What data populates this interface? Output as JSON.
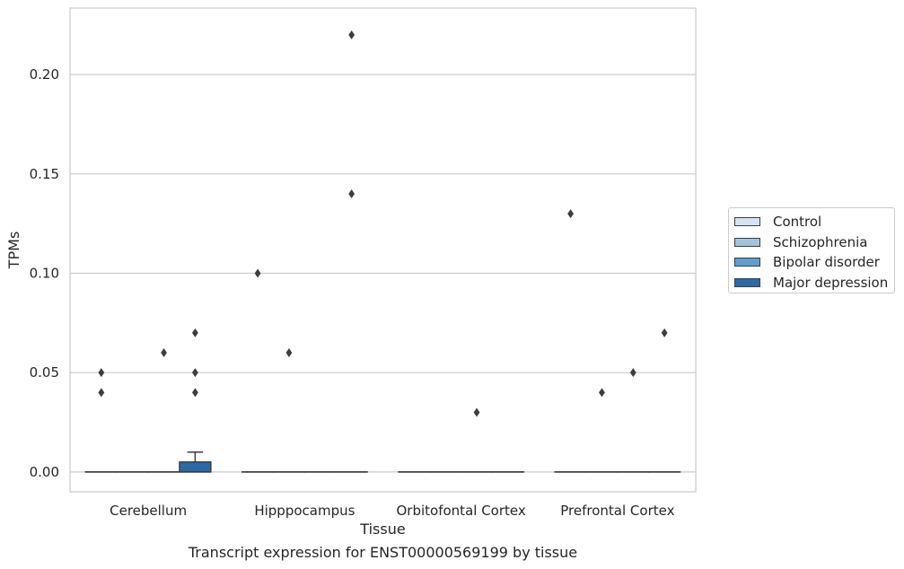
{
  "caption": "Transcript expression for ENST00000569199 by tissue",
  "chart_data": {
    "type": "box",
    "title": "",
    "xlabel": "Tissue",
    "ylabel": "TPMs",
    "ylim": [
      -0.01,
      0.2335
    ],
    "yticks": [
      "0.00",
      "0.05",
      "0.10",
      "0.15",
      "0.20"
    ],
    "ytick_values": [
      0.0,
      0.05,
      0.1,
      0.15,
      0.2
    ],
    "grid": "horizontal",
    "legend_position": "right",
    "categories": [
      "Cerebellum",
      "Hipppocampus",
      "Orbitofontal Cortex",
      "Prefrontal Cortex"
    ],
    "series": [
      {
        "name": "Control",
        "color": "#d4e3f2"
      },
      {
        "name": "Schizophrenia",
        "color": "#a0c4df"
      },
      {
        "name": "Bipolar disorder",
        "color": "#5d9fcd"
      },
      {
        "name": "Major depression",
        "color": "#2b6aa8"
      }
    ],
    "boxes": [
      {
        "category": 0,
        "series": 0,
        "q1": 0,
        "median": 0,
        "q3": 0,
        "whisker_low": 0,
        "whisker_high": 0
      },
      {
        "category": 0,
        "series": 1,
        "q1": 0,
        "median": 0,
        "q3": 0,
        "whisker_low": 0,
        "whisker_high": 0
      },
      {
        "category": 0,
        "series": 2,
        "q1": 0,
        "median": 0,
        "q3": 0,
        "whisker_low": 0,
        "whisker_high": 0
      },
      {
        "category": 0,
        "series": 3,
        "q1": 0,
        "median": 0,
        "q3": 0.005,
        "whisker_low": 0,
        "whisker_high": 0.01
      },
      {
        "category": 1,
        "series": 0,
        "q1": 0,
        "median": 0,
        "q3": 0,
        "whisker_low": 0,
        "whisker_high": 0
      },
      {
        "category": 1,
        "series": 1,
        "q1": 0,
        "median": 0,
        "q3": 0,
        "whisker_low": 0,
        "whisker_high": 0
      },
      {
        "category": 1,
        "series": 2,
        "q1": 0,
        "median": 0,
        "q3": 0,
        "whisker_low": 0,
        "whisker_high": 0
      },
      {
        "category": 1,
        "series": 3,
        "q1": 0,
        "median": 0,
        "q3": 0,
        "whisker_low": 0,
        "whisker_high": 0
      },
      {
        "category": 2,
        "series": 0,
        "q1": 0,
        "median": 0,
        "q3": 0,
        "whisker_low": 0,
        "whisker_high": 0
      },
      {
        "category": 2,
        "series": 1,
        "q1": 0,
        "median": 0,
        "q3": 0,
        "whisker_low": 0,
        "whisker_high": 0
      },
      {
        "category": 2,
        "series": 2,
        "q1": 0,
        "median": 0,
        "q3": 0,
        "whisker_low": 0,
        "whisker_high": 0
      },
      {
        "category": 2,
        "series": 3,
        "q1": 0,
        "median": 0,
        "q3": 0,
        "whisker_low": 0,
        "whisker_high": 0
      },
      {
        "category": 3,
        "series": 0,
        "q1": 0,
        "median": 0,
        "q3": 0,
        "whisker_low": 0,
        "whisker_high": 0
      },
      {
        "category": 3,
        "series": 1,
        "q1": 0,
        "median": 0,
        "q3": 0,
        "whisker_low": 0,
        "whisker_high": 0
      },
      {
        "category": 3,
        "series": 2,
        "q1": 0,
        "median": 0,
        "q3": 0,
        "whisker_low": 0,
        "whisker_high": 0
      },
      {
        "category": 3,
        "series": 3,
        "q1": 0,
        "median": 0,
        "q3": 0,
        "whisker_low": 0,
        "whisker_high": 0
      }
    ],
    "outliers": [
      {
        "category": 0,
        "series": 0,
        "y": 0.05
      },
      {
        "category": 0,
        "series": 0,
        "y": 0.04
      },
      {
        "category": 0,
        "series": 2,
        "y": 0.06
      },
      {
        "category": 0,
        "series": 3,
        "y": 0.07
      },
      {
        "category": 0,
        "series": 3,
        "y": 0.05
      },
      {
        "category": 0,
        "series": 3,
        "y": 0.04
      },
      {
        "category": 1,
        "series": 0,
        "y": 0.1
      },
      {
        "category": 1,
        "series": 1,
        "y": 0.06
      },
      {
        "category": 1,
        "series": 3,
        "y": 0.22
      },
      {
        "category": 1,
        "series": 3,
        "y": 0.14
      },
      {
        "category": 2,
        "series": 2,
        "y": 0.03
      },
      {
        "category": 3,
        "series": 0,
        "y": 0.13
      },
      {
        "category": 3,
        "series": 1,
        "y": 0.04
      },
      {
        "category": 3,
        "series": 2,
        "y": 0.05
      },
      {
        "category": 3,
        "series": 3,
        "y": 0.07
      }
    ]
  }
}
